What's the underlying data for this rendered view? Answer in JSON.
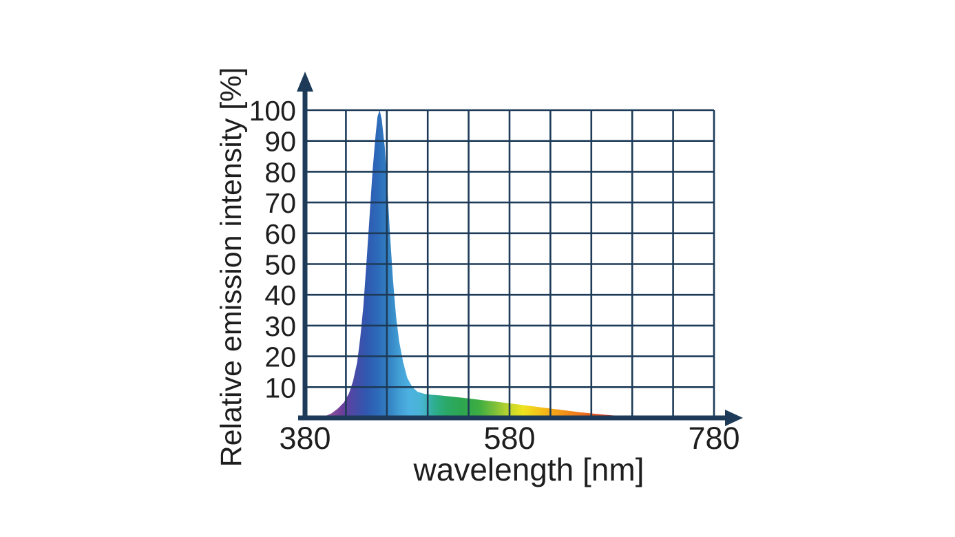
{
  "chart_data": {
    "type": "area",
    "title": "",
    "xlabel": "wavelength [nm]",
    "ylabel": "Relative emission intensity [%]",
    "xlim": [
      380,
      780
    ],
    "ylim": [
      0,
      100
    ],
    "grid": true,
    "legend_position": "none",
    "x_gridline_step_nm": 40,
    "y_gridline_step_pct": 10,
    "xticks": [
      {
        "value": 380,
        "label": "380"
      },
      {
        "value": 580,
        "label": "580"
      },
      {
        "value": 780,
        "label": "780"
      }
    ],
    "yticks": [
      {
        "value": 10,
        "label": "10"
      },
      {
        "value": 20,
        "label": "20"
      },
      {
        "value": 30,
        "label": "30"
      },
      {
        "value": 40,
        "label": "40"
      },
      {
        "value": 50,
        "label": "50"
      },
      {
        "value": 60,
        "label": "60"
      },
      {
        "value": 70,
        "label": "70"
      },
      {
        "value": 80,
        "label": "80"
      },
      {
        "value": 90,
        "label": "90"
      },
      {
        "value": 100,
        "label": "100"
      }
    ],
    "series": [
      {
        "name": "relative emission intensity",
        "peak_nm": 453,
        "peak_intensity_pct": 100,
        "phosphor_shoulder_pct": 7.5,
        "points": [
          [
            396,
            0
          ],
          [
            400,
            0.6
          ],
          [
            406,
            1.5
          ],
          [
            412,
            3
          ],
          [
            418,
            5
          ],
          [
            423,
            8
          ],
          [
            427,
            12
          ],
          [
            431,
            18
          ],
          [
            434,
            26
          ],
          [
            437,
            36
          ],
          [
            440,
            50
          ],
          [
            443,
            65
          ],
          [
            446,
            80
          ],
          [
            449,
            92
          ],
          [
            451,
            98
          ],
          [
            453,
            100
          ],
          [
            455,
            97
          ],
          [
            458,
            88
          ],
          [
            460,
            78
          ],
          [
            463,
            60
          ],
          [
            466,
            45
          ],
          [
            469,
            33
          ],
          [
            472,
            25
          ],
          [
            476,
            18
          ],
          [
            480,
            13
          ],
          [
            485,
            10
          ],
          [
            490,
            8.5
          ],
          [
            497,
            7.8
          ],
          [
            505,
            7.5
          ],
          [
            515,
            7.2
          ],
          [
            527,
            6.8
          ],
          [
            540,
            6.3
          ],
          [
            553,
            5.8
          ],
          [
            566,
            5.3
          ],
          [
            578,
            4.8
          ],
          [
            590,
            4.3
          ],
          [
            602,
            3.8
          ],
          [
            614,
            3.3
          ],
          [
            626,
            2.8
          ],
          [
            638,
            2.3
          ],
          [
            650,
            1.8
          ],
          [
            662,
            1.4
          ],
          [
            674,
            1.0
          ],
          [
            686,
            0.7
          ],
          [
            698,
            0.45
          ],
          [
            710,
            0.25
          ],
          [
            722,
            0.1
          ],
          [
            734,
            0
          ]
        ]
      }
    ],
    "fill_style": "visible-spectrum-gradient",
    "spectrum_gradient": [
      {
        "nm": 398,
        "color": "#a873b2"
      },
      {
        "nm": 406,
        "color": "#8a4f9e"
      },
      {
        "nm": 416,
        "color": "#6c3f9a"
      },
      {
        "nm": 428,
        "color": "#4a4aa6"
      },
      {
        "nm": 440,
        "color": "#3058b0"
      },
      {
        "nm": 452,
        "color": "#2d6cba"
      },
      {
        "nm": 463,
        "color": "#3585c5"
      },
      {
        "nm": 472,
        "color": "#429ed4"
      },
      {
        "nm": 482,
        "color": "#4db2e2"
      },
      {
        "nm": 494,
        "color": "#49b4d2"
      },
      {
        "nm": 506,
        "color": "#2fae92"
      },
      {
        "nm": 518,
        "color": "#2aa968"
      },
      {
        "nm": 534,
        "color": "#2da64f"
      },
      {
        "nm": 550,
        "color": "#3dad42"
      },
      {
        "nm": 566,
        "color": "#7fc03a"
      },
      {
        "nm": 580,
        "color": "#c2d62c"
      },
      {
        "nm": 593,
        "color": "#eee31e"
      },
      {
        "nm": 610,
        "color": "#f4c119"
      },
      {
        "nm": 625,
        "color": "#f3a017"
      },
      {
        "nm": 647,
        "color": "#ef7a1e"
      },
      {
        "nm": 662,
        "color": "#e85c20"
      },
      {
        "nm": 676,
        "color": "#e04122"
      },
      {
        "nm": 694,
        "color": "#d0262a"
      },
      {
        "nm": 712,
        "color": "#c22127"
      },
      {
        "nm": 730,
        "color": "#b81f24"
      }
    ]
  },
  "style": {
    "background": "#ffffff",
    "axis_color": "#1d3b58",
    "grid_color": "#1d3b58",
    "label_color": "#1e1e1e"
  }
}
